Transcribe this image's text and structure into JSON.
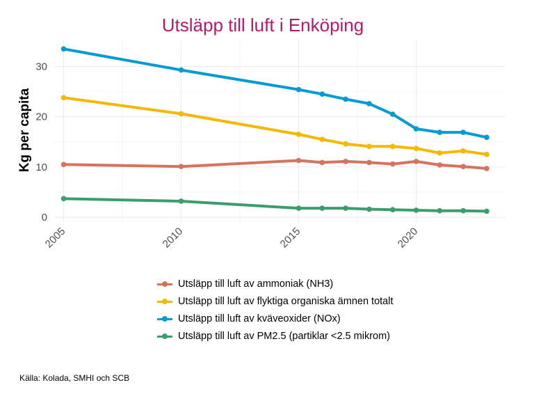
{
  "chart_data": {
    "type": "line",
    "title": "Utsläpp till luft i Enköping",
    "xlabel": "",
    "ylabel": "Kg per capita",
    "xlim": [
      2004.6,
      2023.8
    ],
    "ylim": [
      -1.1,
      35.2
    ],
    "x_ticks": [
      2005,
      2010,
      2015,
      2020
    ],
    "y_ticks": [
      0,
      10,
      20,
      30
    ],
    "grid": true,
    "legend_position": "bottom",
    "series": [
      {
        "name": "Utsläpp till luft av ammoniak (NH3)",
        "color": "#d6735f",
        "points": [
          [
            2005,
            10.5
          ],
          [
            2010,
            10.1
          ],
          [
            2015,
            11.3
          ],
          [
            2016,
            10.9
          ],
          [
            2017,
            11.1
          ],
          [
            2018,
            10.9
          ],
          [
            2019,
            10.6
          ],
          [
            2020,
            11.1
          ],
          [
            2021,
            10.4
          ],
          [
            2022,
            10.1
          ],
          [
            2023,
            9.7
          ]
        ]
      },
      {
        "name": "Utsläpp till luft av flyktiga organiska ämnen totalt",
        "color": "#f5b800",
        "points": [
          [
            2005,
            23.8
          ],
          [
            2010,
            20.6
          ],
          [
            2015,
            16.5
          ],
          [
            2016,
            15.5
          ],
          [
            2017,
            14.6
          ],
          [
            2018,
            14.1
          ],
          [
            2019,
            14.1
          ],
          [
            2020,
            13.7
          ],
          [
            2021,
            12.8
          ],
          [
            2022,
            13.2
          ],
          [
            2023,
            12.5
          ]
        ]
      },
      {
        "name": "Utsläpp till luft av kväveoxider (NOx)",
        "color": "#049ad4",
        "points": [
          [
            2005,
            33.5
          ],
          [
            2010,
            29.3
          ],
          [
            2015,
            25.4
          ],
          [
            2016,
            24.5
          ],
          [
            2017,
            23.5
          ],
          [
            2018,
            22.6
          ],
          [
            2019,
            20.5
          ],
          [
            2020,
            17.6
          ],
          [
            2021,
            16.9
          ],
          [
            2022,
            16.9
          ],
          [
            2023,
            15.9
          ]
        ]
      },
      {
        "name": "Utsläpp till luft av PM2.5 (partiklar <2.5 mikrom)",
        "color": "#3a9e6c",
        "points": [
          [
            2005,
            3.7
          ],
          [
            2010,
            3.2
          ],
          [
            2015,
            1.8
          ],
          [
            2016,
            1.8
          ],
          [
            2017,
            1.8
          ],
          [
            2018,
            1.6
          ],
          [
            2019,
            1.5
          ],
          [
            2020,
            1.4
          ],
          [
            2021,
            1.3
          ],
          [
            2022,
            1.3
          ],
          [
            2023,
            1.2
          ]
        ]
      }
    ]
  },
  "legend": {
    "items": [
      {
        "label": "Utsläpp till luft av ammoniak (NH3)"
      },
      {
        "label": "Utsläpp till luft av flyktiga organiska ämnen totalt"
      },
      {
        "label": "Utsläpp till luft av kväveoxider (NOx)"
      },
      {
        "label": "Utsläpp till luft av PM2.5 (partiklar <2.5 mikrom)"
      }
    ]
  },
  "source": "Källa: Kolada, SMHI och SCB",
  "colors": {
    "title": "#b5196b",
    "grid": "#ebebeb",
    "tick_text": "#4d4d4d"
  }
}
